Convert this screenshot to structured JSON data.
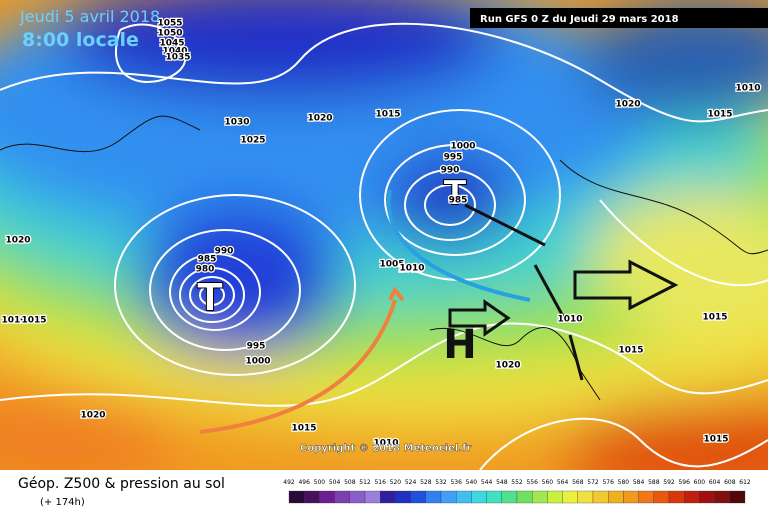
{
  "header": {
    "date": "Jeudi 5 avril 2018",
    "time": "8:00 locale",
    "run": "Run GFS 0 Z du Jeudi 29 mars 2018"
  },
  "map": {
    "low_labels": [
      "T",
      "T"
    ],
    "high_label": "H",
    "isobar_labels": [
      "1055",
      "1050",
      "1045",
      "1040",
      "1035",
      "1030",
      "1025",
      "1020",
      "1015",
      "1000",
      "995",
      "990",
      "985",
      "990",
      "985",
      "980",
      "995",
      "1000",
      "1005",
      "1010",
      "1020",
      "1015",
      "1010",
      "1020",
      "1015",
      "1020",
      "1015",
      "1015",
      "1010",
      "1020",
      "1015",
      "1010",
      "1015",
      "1010",
      "1010"
    ]
  },
  "footer": {
    "copyright": "Copyright © 2018 Meteociel.fr",
    "title": "Géop. Z500 & pression au sol",
    "lead": "(+ 174h)",
    "scale": [
      "492",
      "496",
      "500",
      "504",
      "508",
      "512",
      "516",
      "520",
      "524",
      "528",
      "532",
      "536",
      "540",
      "544",
      "548",
      "552",
      "556",
      "560",
      "564",
      "568",
      "572",
      "576",
      "580",
      "584",
      "588",
      "592",
      "596",
      "600",
      "604",
      "608",
      "612"
    ]
  }
}
